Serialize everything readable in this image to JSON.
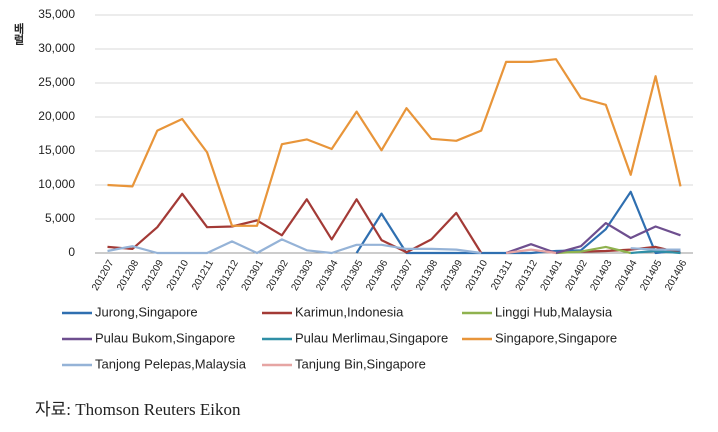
{
  "chart_data": {
    "type": "line",
    "y_label": "배럴",
    "source": "자료: Thomson Reuters Eikon",
    "categories": [
      "201207",
      "201208",
      "201209",
      "201210",
      "201211",
      "201212",
      "201301",
      "201302",
      "201303",
      "201304",
      "201305",
      "201306",
      "201307",
      "201308",
      "201309",
      "201310",
      "201311",
      "201312",
      "201401",
      "201402",
      "201403",
      "201404",
      "201405",
      "201406"
    ],
    "ylim": [
      0,
      35000
    ],
    "yticks": [
      0,
      {
        "value": 5000,
        "label": "5,000"
      },
      {
        "value": 10000,
        "label": "10,000"
      },
      {
        "value": 15000,
        "label": "15,000"
      },
      {
        "value": 20000,
        "label": "20,000"
      },
      {
        "value": 25000,
        "label": "25,000"
      },
      {
        "value": 30000,
        "label": "30,000"
      },
      {
        "value": 35000,
        "label": "35,000"
      }
    ],
    "grid": true,
    "series": [
      {
        "name": "Jurong,Singapore",
        "color": "#2f6fb0",
        "values": [
          null,
          null,
          null,
          null,
          null,
          null,
          null,
          null,
          null,
          null,
          0,
          5800,
          0,
          0,
          0,
          0,
          0,
          0,
          300,
          400,
          3500,
          9000,
          0,
          400
        ]
      },
      {
        "name": "Karimun,Indonesia",
        "color": "#a33a36",
        "values": [
          900,
          600,
          3800,
          8700,
          3800,
          3900,
          4800,
          2600,
          7900,
          2000,
          7900,
          1900,
          100,
          2000,
          5900,
          0,
          null,
          null,
          null,
          200,
          300,
          500,
          900,
          0
        ]
      },
      {
        "name": "Linggi Hub,Malaysia",
        "color": "#8fb24f",
        "values": [
          null,
          null,
          null,
          null,
          null,
          null,
          null,
          null,
          null,
          null,
          null,
          null,
          null,
          null,
          null,
          null,
          null,
          null,
          0,
          200,
          900,
          0,
          null,
          null
        ]
      },
      {
        "name": "Pulau Bukom,Singapore",
        "color": "#6e4f8f",
        "values": [
          null,
          null,
          null,
          null,
          null,
          null,
          null,
          null,
          null,
          null,
          null,
          null,
          null,
          null,
          null,
          null,
          0,
          1300,
          0,
          1000,
          4400,
          2200,
          3900,
          2600
        ]
      },
      {
        "name": "Pulau Merlimau,Singapore",
        "color": "#2f8fa6",
        "values": [
          null,
          null,
          null,
          null,
          null,
          null,
          null,
          null,
          null,
          null,
          null,
          null,
          null,
          null,
          null,
          null,
          null,
          null,
          null,
          null,
          null,
          0,
          300,
          0
        ]
      },
      {
        "name": "Singapore,Singapore",
        "color": "#e8953a",
        "values": [
          10000,
          9800,
          18000,
          19700,
          14800,
          4000,
          4000,
          16000,
          16700,
          15300,
          20800,
          15100,
          21300,
          16800,
          16500,
          18000,
          28100,
          28100,
          28500,
          22800,
          21800,
          11500,
          26000,
          9800
        ]
      },
      {
        "name": "Tanjong Pelepas,Malaysia",
        "color": "#95b3d7",
        "values": [
          300,
          1000,
          0,
          0,
          0,
          1700,
          0,
          2000,
          400,
          0,
          1200,
          1200,
          600,
          600,
          500,
          0,
          null,
          null,
          null,
          null,
          null,
          700,
          500,
          500
        ]
      },
      {
        "name": "Tanjung Bin,Singapore",
        "color": "#e6a5a3",
        "values": [
          null,
          null,
          null,
          null,
          null,
          null,
          null,
          null,
          null,
          null,
          null,
          null,
          null,
          null,
          null,
          null,
          0,
          500,
          0,
          null,
          null,
          null,
          500,
          null
        ]
      }
    ]
  }
}
